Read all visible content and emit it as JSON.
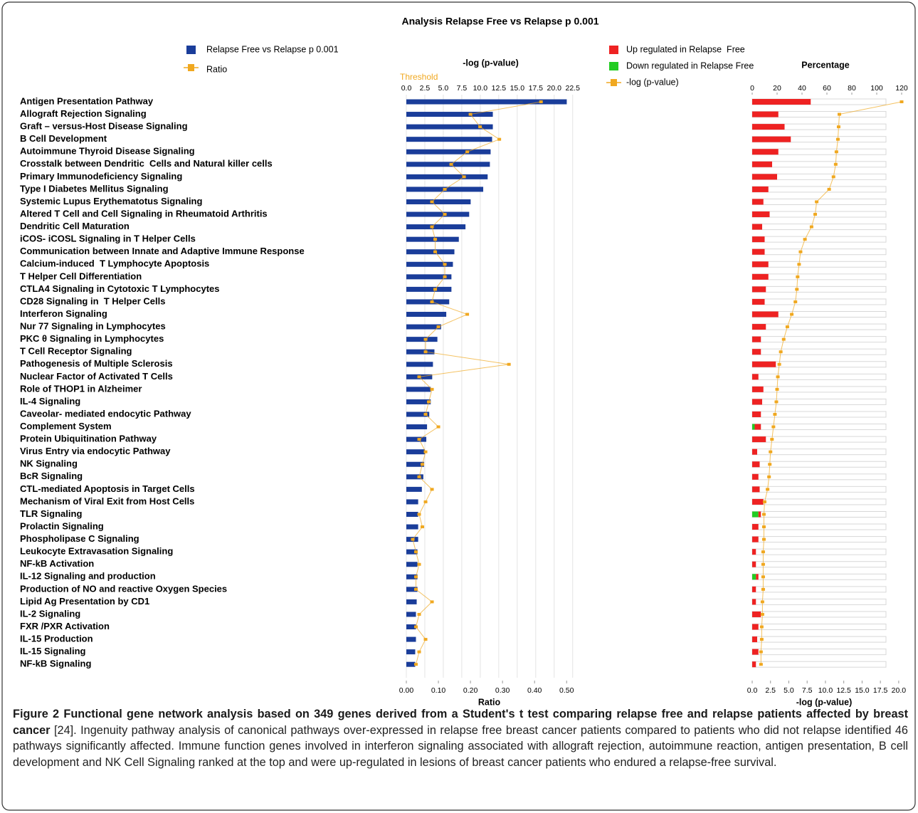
{
  "title": "Analysis Relapse Free vs Relapse p 0.001",
  "threshold_label": "Threshold",
  "chart_data": [
    {
      "type": "bar",
      "orientation": "horizontal",
      "xlabel": "-log (p-value)",
      "x2label": "Ratio",
      "categories": [
        "Antigen Presentation Pathway",
        "Allograft Rejection Signaling",
        "Graft – versus-Host Disease Signaling",
        "B Cell Development",
        "Autoimmune Thyroid Disease Signaling",
        "Crosstalk between Dendritic  Cells and Natural killer cells",
        "Primary Immunodeficiency Signaling",
        "Type I Diabetes Mellitus Signaling",
        "Systemic Lupus Erythematotus Signaling",
        "Altered T Cell and Cell Signaling in Rheumatoid Arthritis",
        "Dendritic Cell Maturation",
        "iCOS- iCOSL Signaling in T Helper Cells",
        "Communication between Innate and Adaptive Immune Response",
        "Calcium-induced  T Lymphocyte Apoptosis",
        "T Helper Cell Differentiation",
        "CTLA4 Signaling in Cytotoxic T Lymphocytes",
        "CD28 Signaling in  T Helper Cells",
        "Interferon Signaling",
        "Nur 77 Signaling in Lymphocytes",
        "PKC θ Signaling in Lymphocytes",
        "T Cell Receptor Signaling",
        "Pathogenesis of Multiple Sclerosis",
        "Nuclear Factor of Activated T Cells",
        "Role of THOP1 in Alzheimer",
        "IL-4 Signaling",
        "Caveolar- mediated endocytic Pathway",
        "Complement System",
        "Protein Ubiquitination Pathway",
        "Virus Entry via endocytic Pathway",
        "NK Signaling",
        "BcR Signaling",
        "CTL-mediated Apoptosis in Target Cells",
        "Mechanism of Viral Exit from Host Cells",
        "TLR Signaling",
        "Prolactin Signaling",
        "Phospholipase C Signaling",
        "Leukocyte Extravasation Signaling",
        "NF-kB Activation",
        "IL-12 Signaling and production",
        "Production of NO and reactive Oxygen Species",
        "Lipid Ag Presentation by CD1",
        "IL-2 Signaling",
        "FXR /PXR Activation",
        "IL-15 Production",
        "IL-15 Signaling",
        "NF-kB Signaling"
      ],
      "series": [
        {
          "name": "Relapse Free vs Relapse p 0.001",
          "type": "bar",
          "color": "#1a3d9a",
          "values": [
            21.7,
            11.7,
            11.7,
            11.6,
            11.4,
            11.3,
            11.0,
            10.4,
            8.7,
            8.5,
            8.0,
            7.1,
            6.5,
            6.3,
            6.1,
            6.1,
            5.8,
            5.4,
            4.7,
            4.2,
            3.8,
            3.6,
            3.5,
            3.3,
            3.3,
            3.1,
            2.8,
            2.7,
            2.5,
            2.4,
            2.3,
            2.1,
            1.6,
            1.6,
            1.6,
            1.6,
            1.5,
            1.5,
            1.5,
            1.5,
            1.4,
            1.3,
            1.3,
            1.3,
            1.2,
            1.2
          ]
        },
        {
          "name": "Ratio",
          "type": "line",
          "axis": "x2",
          "color": "#f0a820",
          "values": [
            0.42,
            0.2,
            0.23,
            0.29,
            0.19,
            0.14,
            0.18,
            0.12,
            0.08,
            0.12,
            0.08,
            0.09,
            0.09,
            0.12,
            0.12,
            0.09,
            0.08,
            0.19,
            0.1,
            0.06,
            0.06,
            0.32,
            0.04,
            0.08,
            0.07,
            0.06,
            0.1,
            0.04,
            0.06,
            0.05,
            0.04,
            0.08,
            0.06,
            0.04,
            0.05,
            0.02,
            0.03,
            0.04,
            0.03,
            0.03,
            0.08,
            0.04,
            0.03,
            0.06,
            0.04,
            0.03
          ]
        }
      ],
      "xlim": [
        0,
        23.2
      ],
      "xticks": [
        {
          "value": 0,
          "label": "0.0"
        },
        {
          "value": 2.5,
          "label": "2.5"
        },
        {
          "value": 5,
          "label": "5.0"
        },
        {
          "value": 7.5,
          "label": "7.5"
        },
        {
          "value": 10,
          "label": "10.0"
        },
        {
          "value": 12.5,
          "label": "12.5"
        },
        {
          "value": 15,
          "label": "15.0"
        },
        {
          "value": 17.5,
          "label": "17.5"
        },
        {
          "value": 20,
          "label": "20.0"
        },
        {
          "value": 22.5,
          "label": "22.5"
        }
      ],
      "x2lim": [
        0,
        0.535
      ],
      "x2ticks": [
        {
          "value": 0,
          "label": "0.00"
        },
        {
          "value": 0.1,
          "label": "0.10"
        },
        {
          "value": 0.2,
          "label": "0.20"
        },
        {
          "value": 0.3,
          "label": "0.30"
        },
        {
          "value": 0.4,
          "label": "0.40"
        },
        {
          "value": 0.5,
          "label": "0.50"
        }
      ],
      "grid": true
    },
    {
      "type": "bar",
      "orientation": "horizontal",
      "xlabel": "Percentage",
      "x2label": "-log (p-value)",
      "series": [
        {
          "name": "Up regulated in Relapse  Free",
          "type": "bar",
          "color": "#ee2222",
          "values": [
            47,
            21,
            26,
            31,
            21,
            16,
            20,
            13,
            9,
            14,
            8,
            10,
            10,
            13,
            13,
            11,
            10,
            21,
            11,
            7,
            7,
            19,
            5,
            9,
            8,
            7,
            5,
            11,
            4,
            6,
            5,
            6,
            9,
            2,
            5,
            5,
            3,
            3,
            2,
            3,
            3,
            7,
            5,
            4,
            5,
            3
          ]
        },
        {
          "name": "Down regulated in Relapse Free",
          "type": "bar",
          "color": "#22cc22",
          "values": [
            0,
            0,
            0,
            0,
            0,
            0,
            0,
            0,
            0,
            0,
            0,
            0,
            0,
            0,
            0,
            0,
            0,
            0,
            0,
            0,
            0,
            0,
            0,
            0,
            0,
            0,
            2,
            0,
            0,
            0,
            0,
            0,
            0,
            5,
            0,
            0,
            0,
            0,
            3,
            0,
            0,
            0,
            0,
            0,
            0,
            0
          ]
        },
        {
          "name": "-log (p-value)",
          "type": "line",
          "axis": "x2",
          "color": "#f0a820",
          "values": [
            20.4,
            11.9,
            11.8,
            11.7,
            11.5,
            11.4,
            11.1,
            10.5,
            8.8,
            8.6,
            8.1,
            7.2,
            6.6,
            6.4,
            6.2,
            6.1,
            5.9,
            5.4,
            4.8,
            4.3,
            3.9,
            3.7,
            3.5,
            3.4,
            3.3,
            3.1,
            2.9,
            2.7,
            2.5,
            2.4,
            2.3,
            2.1,
            1.7,
            1.6,
            1.6,
            1.6,
            1.5,
            1.5,
            1.5,
            1.5,
            1.4,
            1.4,
            1.3,
            1.3,
            1.2,
            1.2
          ]
        }
      ],
      "xlim": [
        0,
        120
      ],
      "xticks": [
        0,
        20,
        40,
        60,
        80,
        100,
        120
      ],
      "x2lim": [
        0,
        20.4
      ],
      "x2ticks": [
        {
          "value": 0,
          "label": "0.0"
        },
        {
          "value": 2.5,
          "label": "2.5"
        },
        {
          "value": 5,
          "label": "5.0"
        },
        {
          "value": 7.5,
          "label": "7.5"
        },
        {
          "value": 10,
          "label": "10.0"
        },
        {
          "value": 12.5,
          "label": "12.5"
        },
        {
          "value": 15,
          "label": "15.0"
        },
        {
          "value": 17.5,
          "label": "17.5"
        },
        {
          "value": 20,
          "label": "20.0"
        }
      ],
      "grid": false
    }
  ],
  "caption": {
    "label": "Figure 2",
    "title": "Functional gene network analysis based on 349 genes derived from a Student's t test comparing relapse free and relapse patients affected by breast cancer",
    "text": "[24]. Ingenuity pathway analysis of canonical pathways over-expressed in relapse free breast cancer patients compared to patients who did not relapse identified 46 pathways significantly affected. Immune function genes involved in interferon signaling associated with allograft rejection, autoimmune reaction, antigen presentation, B cell development and NK Cell Signaling ranked at the top and were up-regulated in lesions of breast cancer patients who endured a relapse-free survival."
  }
}
